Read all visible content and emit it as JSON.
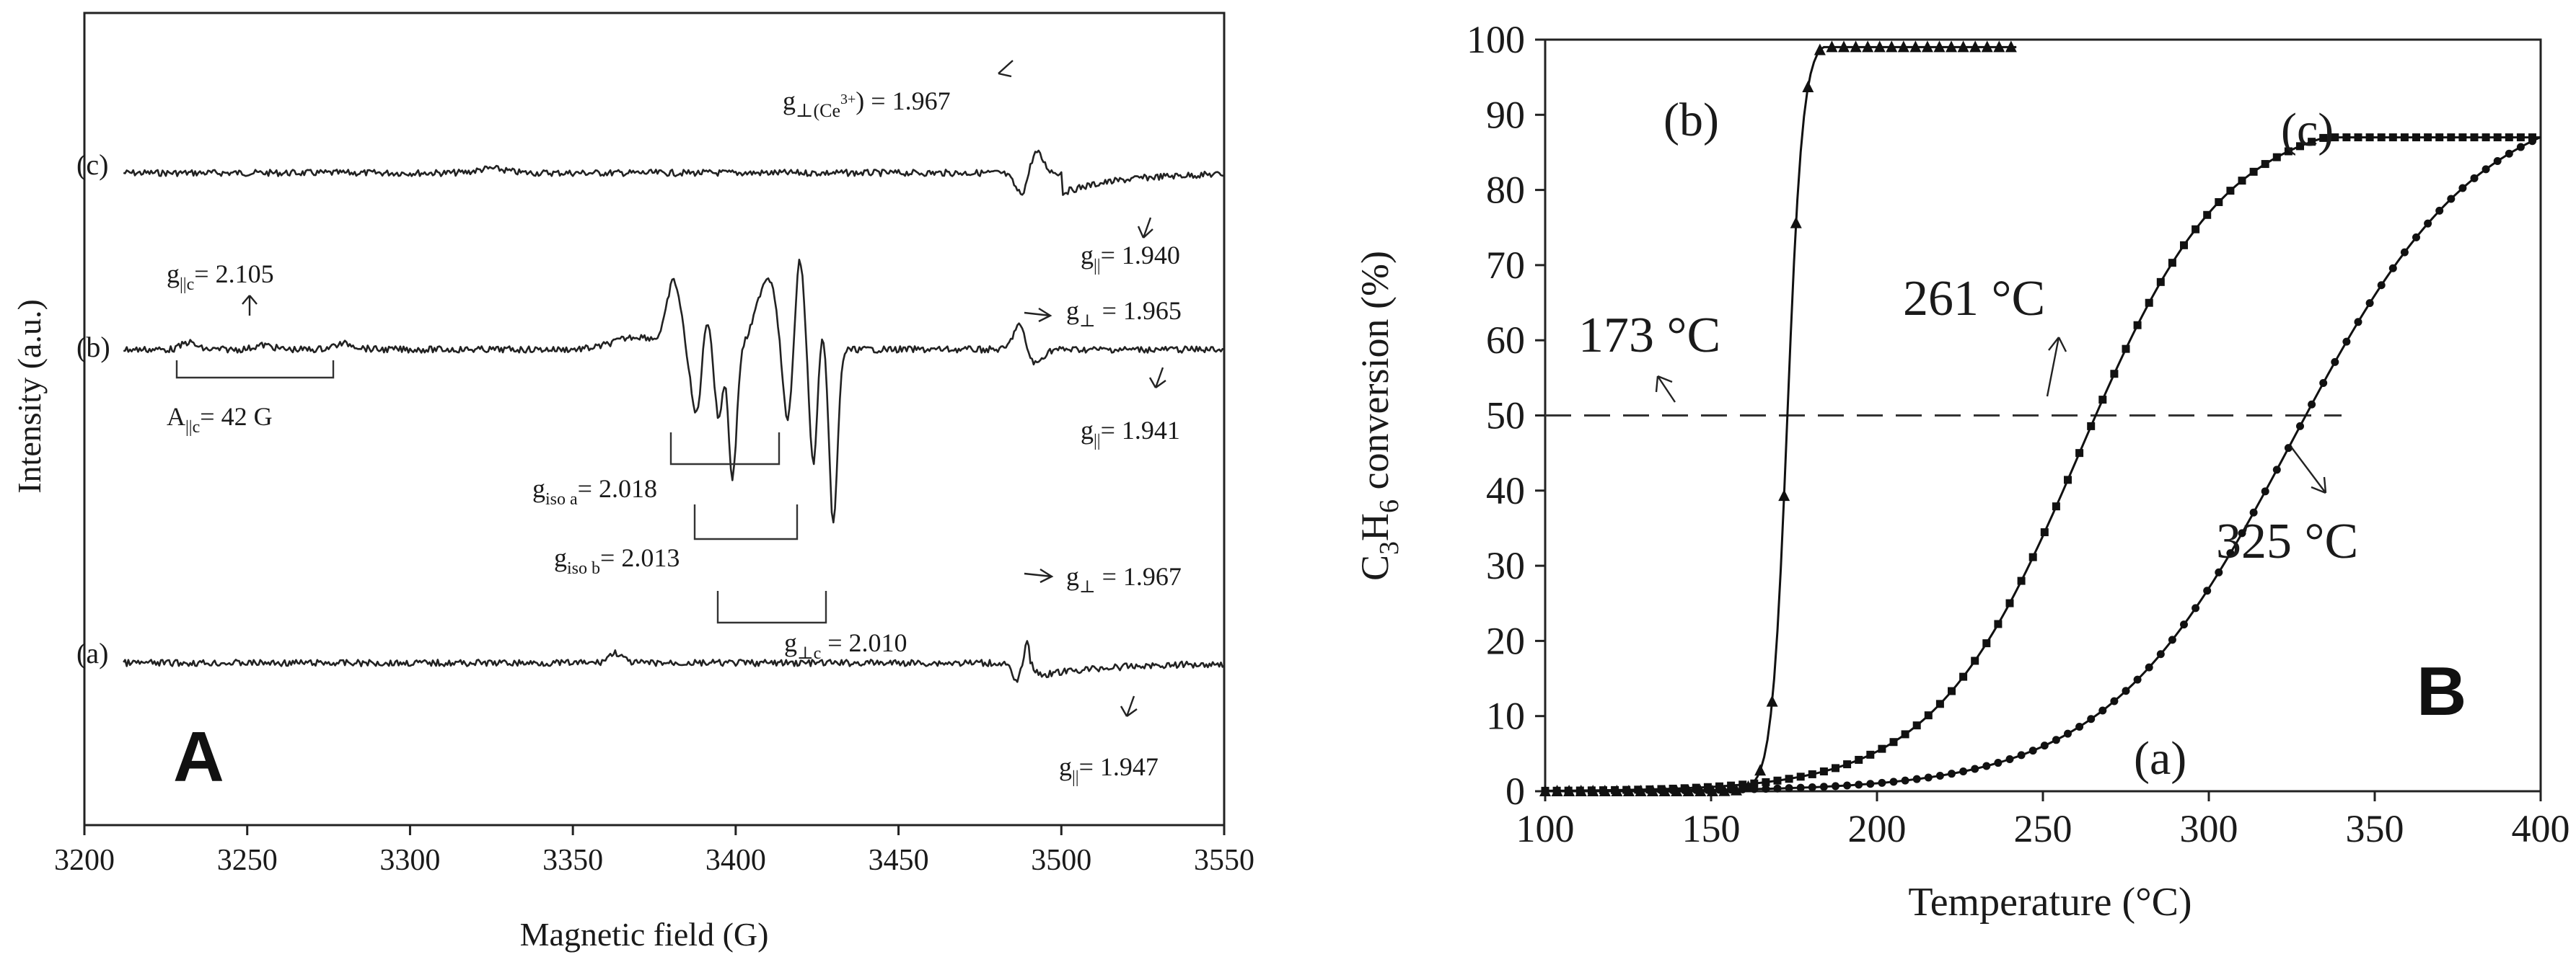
{
  "chart_data": [
    {
      "panel": "A",
      "type": "line",
      "title": "",
      "xlabel": "Magnetic field (G)",
      "ylabel": "Intensity (a.u.)",
      "xlim": [
        3200,
        3550
      ],
      "xticks": [
        "3200",
        "3250",
        "3300",
        "3350",
        "3400",
        "3450",
        "3500",
        "3550"
      ],
      "series": [
        {
          "name": "(c)",
          "label": "(c)"
        },
        {
          "name": "(b)",
          "label": "(b)"
        },
        {
          "name": "(a)",
          "label": "(a)"
        }
      ],
      "annotations": {
        "c_gperp_sub": "g",
        "c_gperp_sub2": "⊥(Ce",
        "c_gperp_sup": "3+",
        "c_gperp_val": ") = 1.967",
        "c_gpar_g": "g",
        "c_gpar_sub": "||",
        "c_gpar_val": "= 1.940",
        "b_gparc_g": "g",
        "b_gparc_sub": "||c",
        "b_gparc_val": "= 2.105",
        "b_Aparc_A": "A",
        "b_Aparc_sub": "||c",
        "b_Aparc_val": "= 42 G",
        "b_gperp_g": "g",
        "b_gperp_sub": "⊥",
        "b_gperp_val": " = 1.965",
        "b_gpar_g": "g",
        "b_gpar_sub": "||",
        "b_gpar_val": "= 1.941",
        "giso_a_g": "g",
        "giso_a_sub": "iso a",
        "giso_a_val": "= 2.018",
        "giso_b_g": "g",
        "giso_b_sub": "iso b",
        "giso_b_val": "= 2.013",
        "gperpc_g": "g",
        "gperpc_sub": "⊥c",
        "gperpc_val": " = 2.010",
        "a_gperp_g": "g",
        "a_gperp_sub": "⊥",
        "a_gperp_val": " = 1.967",
        "a_gpar_g": "g",
        "a_gpar_sub": "||",
        "a_gpar_val": "= 1.947"
      }
    },
    {
      "panel": "B",
      "type": "line",
      "title": "",
      "xlabel": "Temperature (°C)",
      "ylabel_main": "C",
      "ylabel_sub1": "3",
      "ylabel_mid": "H",
      "ylabel_sub2": "6",
      "ylabel_tail": " conversion (%)",
      "xlim": [
        100,
        400
      ],
      "ylim": [
        0,
        100
      ],
      "xticks": [
        "100",
        "150",
        "200",
        "250",
        "300",
        "350",
        "400"
      ],
      "yticks": [
        "0",
        "10",
        "20",
        "30",
        "40",
        "50",
        "60",
        "70",
        "80",
        "90",
        "100"
      ],
      "reference_line_y": 50,
      "series": [
        {
          "name": "(b)",
          "label": "(b)",
          "marker": "triangle",
          "t50": 173,
          "t50_label": "173 °C"
        },
        {
          "name": "(c)",
          "label": "(c)",
          "marker": "square",
          "t50": 261,
          "t50_label": "261 °C"
        },
        {
          "name": "(a)",
          "label": "(a)",
          "marker": "circle",
          "t50": 325,
          "t50_label": "325 °C"
        }
      ]
    }
  ]
}
